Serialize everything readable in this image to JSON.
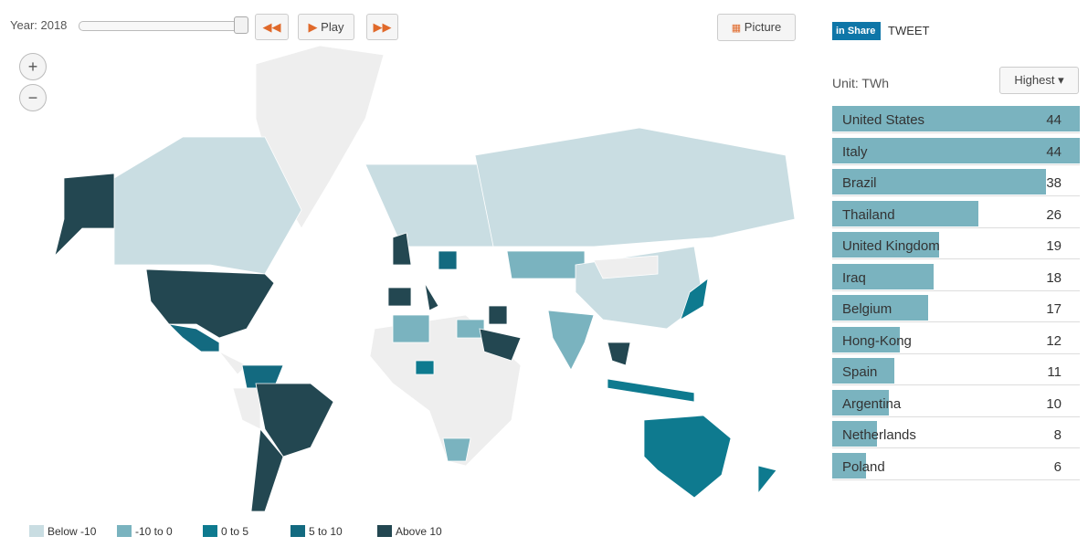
{
  "controls": {
    "year_label": "Year: 2018",
    "play": "Play",
    "picture": "Picture",
    "share": "Share",
    "tweet": "TWEET",
    "zoom_in": "+",
    "zoom_out": "−"
  },
  "ranking": {
    "unit": "Unit: TWh",
    "sort": "Highest",
    "color": "#7ab3bf",
    "categories": [
      "United States",
      "Italy",
      "Brazil",
      "Thailand",
      "United Kingdom",
      "Iraq",
      "Belgium",
      "Hong-Kong",
      "Spain",
      "Argentina",
      "Netherlands",
      "Poland"
    ],
    "values": [
      44,
      44,
      38,
      26,
      19,
      18,
      17,
      12,
      11,
      10,
      8,
      6
    ]
  },
  "legend": [
    {
      "label": "Below -10",
      "color": "#c9dde2"
    },
    {
      "label": "-10 to 0",
      "color": "#7ab3bf"
    },
    {
      "label": "0 to 5",
      "color": "#0e7a8f"
    },
    {
      "label": "5 to 10",
      "color": "#136a80"
    },
    {
      "label": "Above 10",
      "color": "#234751"
    }
  ]
}
